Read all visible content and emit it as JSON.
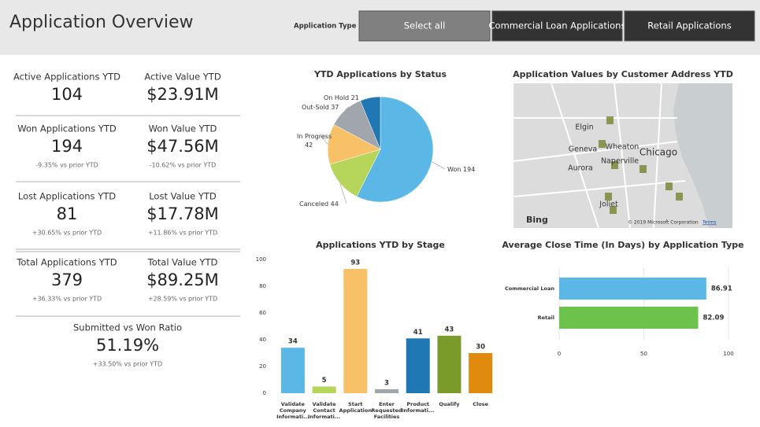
{
  "header": {
    "title": "Application Overview",
    "filter_label": "Application Type",
    "buttons": [
      "Select all",
      "Commercial Loan Applications",
      "Retail Applications"
    ]
  },
  "kpis": [
    {
      "label": "Active Applications YTD",
      "value": "104"
    },
    {
      "label": "Active Value YTD",
      "value": "$23.91M"
    },
    {
      "label": "Won Applications YTD",
      "value": "194",
      "change": "-9.35% vs prior YTD"
    },
    {
      "label": "Won Value YTD",
      "value": "$47.56M",
      "change": "-10.62% vs prior YTD"
    },
    {
      "label": "Lost Applications YTD",
      "value": "81",
      "change": "+30.65% vs prior YTD"
    },
    {
      "label": "Lost Value YTD",
      "value": "$17.78M",
      "change": "+11.86% vs prior YTD"
    },
    {
      "label": "Total Applications YTD",
      "value": "379",
      "change": "+36.33% vs prior YTD"
    },
    {
      "label": "Total Value YTD",
      "value": "$89.25M",
      "change": "+28.59% vs prior YTD"
    },
    {
      "label": "Submitted vs Won Ratio",
      "value": "51.19%",
      "change": "+33.50% vs prior YTD"
    }
  ],
  "map": {
    "title": "Application Values by Customer Address YTD",
    "labels": [
      "Elgin",
      "Wheaton",
      "Chicago",
      "Geneva",
      "Naperville",
      "Aurora",
      "Joliet"
    ],
    "logo": "Bing",
    "copyright": "© 2019 Microsoft Corporation",
    "terms": "Terms"
  },
  "chart_data": [
    {
      "type": "pie",
      "title": "YTD Applications by Status",
      "categories": [
        "Won",
        "Canceled",
        "In Progress",
        "Out-Sold",
        "On Hold"
      ],
      "values": [
        194,
        44,
        42,
        37,
        21
      ],
      "colors": [
        "#5bb8e6",
        "#b5d65a",
        "#f8c168",
        "#a0a6ab",
        "#1f78b4"
      ]
    },
    {
      "type": "bar",
      "title": "Applications YTD by Stage",
      "categories": [
        "Validate Company Informati...",
        "Validate Contact Informati...",
        "Start Application",
        "Enter Requested Facilities",
        "Product Informati...",
        "Qualify",
        "Close"
      ],
      "values": [
        34,
        5,
        93,
        3,
        41,
        43,
        30
      ],
      "colors": [
        "#5bb8e6",
        "#b5d65a",
        "#f8c168",
        "#a0a6ab",
        "#1f78b4",
        "#7a9a2a",
        "#e08a0e"
      ],
      "ylim": [
        0,
        100
      ],
      "yticks": [
        0,
        20,
        40,
        60,
        80,
        100
      ]
    },
    {
      "type": "hbar",
      "title": "Average Close Time (In Days) by Application Type",
      "categories": [
        "Commercial Loan",
        "Retail"
      ],
      "values": [
        86.91,
        82.09
      ],
      "colors": [
        "#5bb8e6",
        "#6cc24a"
      ],
      "xlim": [
        0,
        100
      ],
      "xticks": [
        0,
        50,
        100
      ],
      "grid": true
    }
  ]
}
